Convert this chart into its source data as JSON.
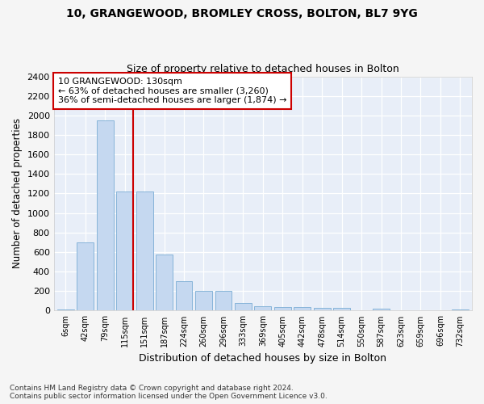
{
  "title_line1": "10, GRANGEWOOD, BROMLEY CROSS, BOLTON, BL7 9YG",
  "title_line2": "Size of property relative to detached houses in Bolton",
  "xlabel": "Distribution of detached houses by size in Bolton",
  "ylabel": "Number of detached properties",
  "bar_color": "#c5d8f0",
  "bar_edge_color": "#7aadd4",
  "marker_line_color": "#cc0000",
  "marker_value": 130,
  "annotation_text": "10 GRANGEWOOD: 130sqm\n← 63% of detached houses are smaller (3,260)\n36% of semi-detached houses are larger (1,874) →",
  "annotation_box_color": "#ffffff",
  "annotation_box_edge": "#cc0000",
  "footer": "Contains HM Land Registry data © Crown copyright and database right 2024.\nContains public sector information licensed under the Open Government Licence v3.0.",
  "categories": [
    "6sqm",
    "42sqm",
    "79sqm",
    "115sqm",
    "151sqm",
    "187sqm",
    "224sqm",
    "260sqm",
    "296sqm",
    "333sqm",
    "369sqm",
    "405sqm",
    "442sqm",
    "478sqm",
    "514sqm",
    "550sqm",
    "587sqm",
    "623sqm",
    "659sqm",
    "696sqm",
    "732sqm"
  ],
  "values": [
    15,
    700,
    1950,
    1220,
    1220,
    575,
    305,
    200,
    200,
    80,
    45,
    40,
    35,
    30,
    25,
    0,
    20,
    0,
    0,
    0,
    15
  ],
  "ylim": [
    0,
    2400
  ],
  "yticks": [
    0,
    200,
    400,
    600,
    800,
    1000,
    1200,
    1400,
    1600,
    1800,
    2000,
    2200,
    2400
  ],
  "background_color": "#e8eef8",
  "grid_color": "#ffffff",
  "fig_bg": "#f5f5f5"
}
